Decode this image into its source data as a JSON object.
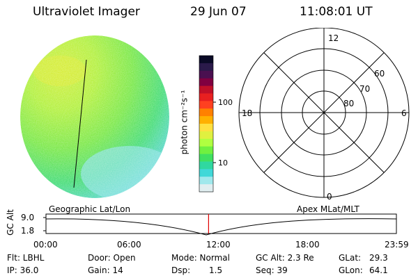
{
  "header": {
    "instrument": "Ultraviolet Imager",
    "date": "29 Jun 07",
    "time": "11:08:01 UT"
  },
  "colorbar": {
    "unit_label": "photon cm⁻²s⁻¹",
    "ticks": [
      "100",
      "10"
    ],
    "colors": [
      "#0a0a26",
      "#2a1a4a",
      "#4a1050",
      "#800040",
      "#c01028",
      "#e82020",
      "#ff4020",
      "#ff8000",
      "#ffb000",
      "#ffe040",
      "#e0f040",
      "#b0ff40",
      "#70f040",
      "#40e060",
      "#30d8a0",
      "#40d8d8",
      "#a0e8ec",
      "#e0eef0"
    ]
  },
  "polar_plot": {
    "mlt_labels": [
      "12",
      "18",
      "6",
      "0"
    ],
    "lat_labels": [
      "60",
      "70",
      "80"
    ]
  },
  "altitude_panel": {
    "ylabel": "GC Alt",
    "y_ticks": [
      "9.0",
      "1.8"
    ],
    "left_caption": "Geographic Lat/Lon",
    "right_caption": "Apex MLat/MLT",
    "x_ticks": [
      "00:00",
      "06:00",
      "12:00",
      "18:00",
      "23:59"
    ],
    "current_marker_hours": 11.13,
    "marker_color": "#e00000"
  },
  "info": {
    "filter": "Flt: LBHL",
    "door": "Door: Open",
    "mode": "Mode: Normal",
    "gc_alt": "GC Alt: 2.3 Re",
    "glat_label": "GLat:",
    "glat_value": "29.3",
    "ip": "IP: 36.0",
    "gain": "Gain: 14",
    "dsp_label": "Dsp:",
    "dsp_value": "1.5",
    "seq": "Seq: 39",
    "glon_label": "GLon:",
    "glon_value": "64.1"
  }
}
